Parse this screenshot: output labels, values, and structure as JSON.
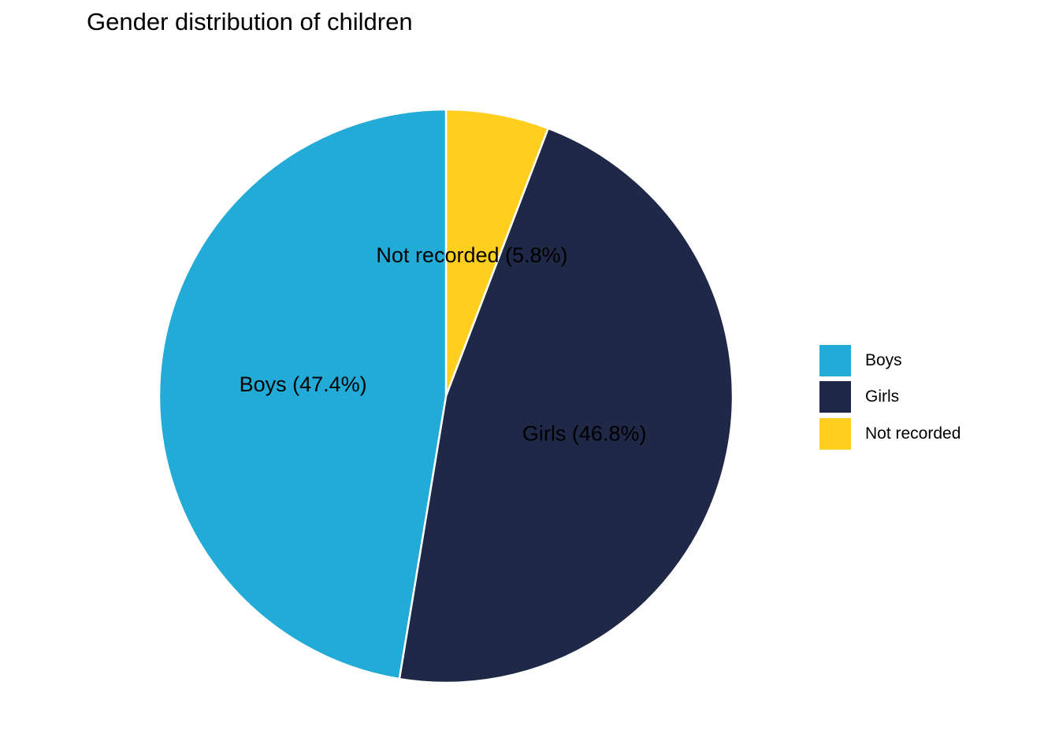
{
  "chart_data": {
    "type": "pie",
    "title": "Gender distribution of children",
    "categories": [
      "Boys",
      "Girls",
      "Not recorded"
    ],
    "values": [
      47.4,
      46.8,
      5.8
    ],
    "slice_labels": [
      "Boys (47.4%)",
      "Girls (46.8%)",
      "Not recorded (5.8%)"
    ],
    "colors": [
      "#22ABD7",
      "#1F2846",
      "#FECF1E"
    ],
    "legend_position": "right",
    "legend": {
      "items": [
        {
          "label": "Boys",
          "color": "#22ABD7"
        },
        {
          "label": "Girls",
          "color": "#1F2846"
        },
        {
          "label": "Not recorded",
          "color": "#FECF1E"
        }
      ]
    }
  }
}
